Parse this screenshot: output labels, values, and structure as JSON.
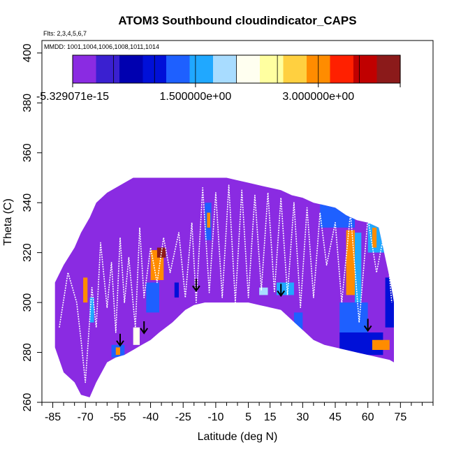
{
  "chart_data": {
    "type": "heatmap",
    "title": "ATOM3 Southbound cloudindicator_CAPS",
    "subtitle_flights": "Flts: 2,3,4,5,6,7",
    "subtitle_dates": "MMDD: 1001,1004,1006,1008,1011,1014",
    "xlabel": "Latitude (deg N)",
    "ylabel": "Theta (C)",
    "xlim": [
      -90,
      90
    ],
    "ylim": [
      260,
      405
    ],
    "x_ticks": [
      -85,
      -70,
      -55,
      -40,
      -25,
      -10,
      5,
      15,
      30,
      45,
      60,
      75
    ],
    "x_tick_labels": [
      "-85",
      "-70",
      "-55",
      "-40",
      "-25",
      "-10",
      "5",
      "15",
      "30",
      "45",
      "60",
      "75"
    ],
    "y_ticks": [
      260,
      280,
      300,
      320,
      340,
      360,
      380,
      400
    ],
    "y_tick_labels": [
      "260",
      "280",
      "300",
      "320",
      "340",
      "360",
      "380",
      "400"
    ],
    "colorbar": {
      "min": 0,
      "max": 4,
      "tick_values": [
        0,
        1.5,
        3.0
      ],
      "tick_labels": [
        "-5.329071e-15",
        "1.500000e+00",
        "3.000000e+00"
      ],
      "colors": [
        "#8a2be2",
        "#3a20d0",
        "#0000b0",
        "#0010d8",
        "#1e60ff",
        "#20a8ff",
        "#a8dcff",
        "#fffff0",
        "#ffffa0",
        "#ffd040",
        "#ff8c00",
        "#ff2000",
        "#c00000",
        "#8b1a1a"
      ]
    },
    "background_value": 0,
    "background_color": "#8a2be2",
    "coverage": {
      "lat": [
        -84,
        -80,
        -75,
        -72,
        -68,
        -65,
        -60,
        -56,
        -52,
        -48,
        -44,
        -40,
        -36,
        -30,
        -24,
        -20,
        -15,
        -10,
        -5,
        0,
        5,
        10,
        15,
        20,
        25,
        30,
        35,
        40,
        45,
        50,
        55,
        60,
        65,
        70,
        72
      ],
      "theta_bottom": [
        282,
        272,
        268,
        263,
        262,
        268,
        276,
        278,
        279,
        281,
        283,
        285,
        288,
        292,
        297,
        299,
        300,
        300,
        300,
        300,
        300,
        299,
        298,
        297,
        293,
        289,
        285,
        283,
        282,
        281,
        280,
        279,
        278,
        277,
        276
      ],
      "theta_top": [
        308,
        315,
        322,
        328,
        334,
        340,
        344,
        346,
        348,
        350,
        350,
        350,
        350,
        350,
        350,
        350,
        350,
        350,
        350,
        349,
        348,
        347,
        346,
        345,
        343,
        342,
        340,
        339,
        338,
        335,
        333,
        332,
        330,
        310,
        300
      ]
    },
    "cloud_patches": [
      {
        "lat": [
          -58,
          -52
        ],
        "theta": [
          278,
          283
        ],
        "value": 1.2
      },
      {
        "lat": [
          -56,
          -54
        ],
        "theta": [
          279,
          282
        ],
        "value": 3.1
      },
      {
        "lat": [
          -48,
          -45
        ],
        "theta": [
          283,
          290
        ],
        "value": 2.0
      },
      {
        "lat": [
          -42,
          -36
        ],
        "theta": [
          296,
          308
        ],
        "value": 1.4
      },
      {
        "lat": [
          -40,
          -34
        ],
        "theta": [
          309,
          321
        ],
        "value": 3.0
      },
      {
        "lat": [
          -37,
          -33
        ],
        "theta": [
          318,
          322
        ],
        "value": 4.0
      },
      {
        "lat": [
          -29,
          -27
        ],
        "theta": [
          302,
          308
        ],
        "value": 1.0
      },
      {
        "lat": [
          -15,
          -12
        ],
        "theta": [
          325,
          340
        ],
        "value": 1.3
      },
      {
        "lat": [
          -14,
          -12.5
        ],
        "theta": [
          330,
          336
        ],
        "value": 3.0
      },
      {
        "lat": [
          -71,
          -69
        ],
        "theta": [
          300,
          310
        ],
        "value": 2.9
      },
      {
        "lat": [
          -68,
          -66
        ],
        "theta": [
          292,
          302
        ],
        "value": 1.6
      },
      {
        "lat": [
          10,
          14
        ],
        "theta": [
          303,
          306
        ],
        "value": 1.8
      },
      {
        "lat": [
          18,
          26
        ],
        "theta": [
          303,
          308
        ],
        "value": 1.5
      },
      {
        "lat": [
          26,
          30
        ],
        "theta": [
          288,
          296
        ],
        "value": 1.3
      },
      {
        "lat": [
          38,
          54
        ],
        "theta": [
          330,
          345
        ],
        "value": 1.4
      },
      {
        "lat": [
          50,
          54
        ],
        "theta": [
          303,
          329
        ],
        "value": 3.0
      },
      {
        "lat": [
          54,
          57
        ],
        "theta": [
          300,
          328
        ],
        "value": 1.5
      },
      {
        "lat": [
          47,
          60
        ],
        "theta": [
          288,
          300
        ],
        "value": 1.2
      },
      {
        "lat": [
          47,
          67
        ],
        "theta": [
          279,
          288
        ],
        "value": 1.0
      },
      {
        "lat": [
          60,
          68
        ],
        "theta": [
          320,
          333
        ],
        "value": 1.5
      },
      {
        "lat": [
          62,
          64
        ],
        "theta": [
          322,
          330
        ],
        "value": 3.0
      },
      {
        "lat": [
          68,
          72
        ],
        "theta": [
          290,
          310
        ],
        "value": 1.0
      },
      {
        "lat": [
          62,
          70
        ],
        "theta": [
          281,
          285
        ],
        "value": 3.0
      }
    ],
    "white_tracks": {
      "lat": [
        -82,
        -78,
        -74,
        -72,
        -70,
        -67,
        -65,
        -63,
        -60,
        -58,
        -56,
        -54,
        -52,
        -50,
        -47,
        -45,
        -43,
        -40,
        -37,
        -34,
        -31,
        -27,
        -24,
        -21,
        -19,
        -16,
        -13,
        -10,
        -7,
        -4,
        -1,
        2,
        5,
        8,
        11,
        14,
        17,
        20,
        23,
        26,
        29,
        32,
        35,
        38,
        41,
        45,
        48,
        52,
        56,
        60,
        64,
        68,
        71
      ],
      "theta": [
        290,
        312,
        300,
        285,
        268,
        306,
        290,
        324,
        298,
        316,
        288,
        326,
        300,
        318,
        290,
        330,
        302,
        322,
        308,
        326,
        312,
        328,
        302,
        332,
        300,
        346,
        304,
        344,
        302,
        347,
        300,
        345,
        302,
        343,
        305,
        344,
        304,
        342,
        303,
        340,
        298,
        338,
        302,
        336,
        315,
        332,
        300,
        336,
        292,
        334,
        312,
        330,
        300
      ]
    },
    "arrows": [
      {
        "lat": -54,
        "theta": 283
      },
      {
        "lat": -43,
        "theta": 288
      },
      {
        "lat": -19,
        "theta": 305
      },
      {
        "lat": 20,
        "theta": 303
      },
      {
        "lat": 60,
        "theta": 289
      }
    ]
  }
}
